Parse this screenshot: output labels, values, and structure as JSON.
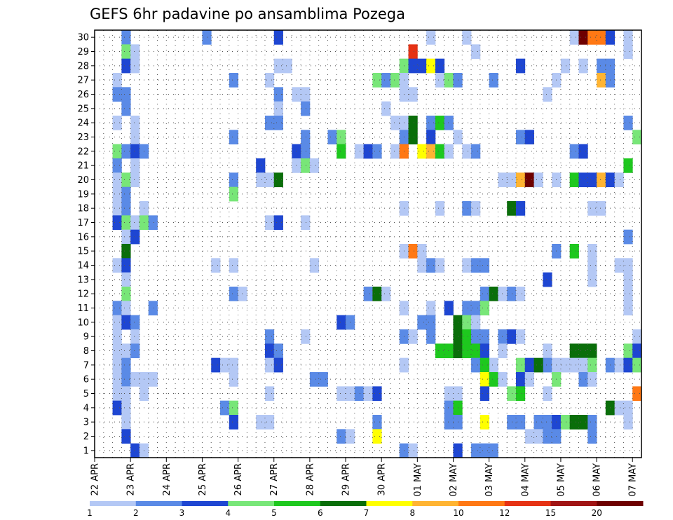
{
  "chart_data": {
    "type": "heatmap",
    "title": "GEFS 6hr padavine po ansamblima Pozega",
    "xlabel": "",
    "ylabel": "",
    "x_tick_labels": [
      "22 APR",
      "23 APR",
      "24 APR",
      "25 APR",
      "26 APR",
      "27 APR",
      "28 APR",
      "29 APR",
      "30 APR",
      "01 MAY",
      "02 MAY",
      "03 MAY",
      "04 MAY",
      "05 MAY",
      "06 MAY",
      "07 MAY"
    ],
    "y_tick_labels": [
      "1",
      "2",
      "3",
      "4",
      "5",
      "6",
      "7",
      "8",
      "9",
      "10",
      "11",
      "12",
      "13",
      "14",
      "15",
      "16",
      "17",
      "18",
      "19",
      "20",
      "21",
      "22",
      "23",
      "24",
      "25",
      "26",
      "27",
      "28",
      "29",
      "30"
    ],
    "time_steps": 61,
    "members": 30,
    "grid": "dotted",
    "colorbar": {
      "position": "bottom",
      "labels": [
        "1",
        "2",
        "3",
        "4",
        "5",
        "6",
        "7",
        "8",
        "10",
        "12",
        "15",
        "20"
      ],
      "colors": [
        "#b4c8f5",
        "#5a8ae6",
        "#1e46d2",
        "#78e678",
        "#1ec81e",
        "#0a6e0a",
        "#ffff00",
        "#ffb432",
        "#ff7814",
        "#e63214",
        "#a01414",
        "#6e0000"
      ]
    },
    "cells": [
      [
        3,
        30,
        1
      ],
      [
        12,
        30,
        1
      ],
      [
        20,
        30,
        2
      ],
      [
        37,
        30,
        0
      ],
      [
        41,
        30,
        0
      ],
      [
        53,
        30,
        0
      ],
      [
        54,
        30,
        11
      ],
      [
        55,
        30,
        8
      ],
      [
        56,
        30,
        8
      ],
      [
        57,
        30,
        2
      ],
      [
        59,
        30,
        0
      ],
      [
        3,
        29,
        3
      ],
      [
        4,
        29,
        0
      ],
      [
        35,
        29,
        9
      ],
      [
        42,
        29,
        0
      ],
      [
        59,
        29,
        0
      ],
      [
        3,
        28,
        2
      ],
      [
        4,
        28,
        0
      ],
      [
        20,
        28,
        0
      ],
      [
        21,
        28,
        0
      ],
      [
        34,
        28,
        3
      ],
      [
        35,
        28,
        2
      ],
      [
        36,
        28,
        2
      ],
      [
        37,
        28,
        6
      ],
      [
        38,
        28,
        2
      ],
      [
        47,
        28,
        2
      ],
      [
        52,
        28,
        0
      ],
      [
        54,
        28,
        0
      ],
      [
        56,
        28,
        1
      ],
      [
        57,
        28,
        1
      ],
      [
        2,
        27,
        0
      ],
      [
        15,
        27,
        1
      ],
      [
        19,
        27,
        0
      ],
      [
        31,
        27,
        3
      ],
      [
        32,
        27,
        1
      ],
      [
        33,
        27,
        3
      ],
      [
        34,
        27,
        0
      ],
      [
        38,
        27,
        0
      ],
      [
        39,
        27,
        3
      ],
      [
        40,
        27,
        1
      ],
      [
        44,
        27,
        1
      ],
      [
        51,
        27,
        0
      ],
      [
        56,
        27,
        7
      ],
      [
        57,
        27,
        1
      ],
      [
        2,
        26,
        1
      ],
      [
        3,
        26,
        1
      ],
      [
        20,
        26,
        1
      ],
      [
        22,
        26,
        0
      ],
      [
        23,
        26,
        0
      ],
      [
        34,
        26,
        0
      ],
      [
        35,
        26,
        0
      ],
      [
        50,
        26,
        0
      ],
      [
        3,
        25,
        1
      ],
      [
        20,
        25,
        0
      ],
      [
        23,
        25,
        1
      ],
      [
        32,
        25,
        0
      ],
      [
        2,
        24,
        0
      ],
      [
        4,
        24,
        0
      ],
      [
        19,
        24,
        1
      ],
      [
        20,
        24,
        1
      ],
      [
        33,
        24,
        0
      ],
      [
        34,
        24,
        0
      ],
      [
        35,
        24,
        5
      ],
      [
        37,
        24,
        1
      ],
      [
        38,
        24,
        4
      ],
      [
        39,
        24,
        1
      ],
      [
        59,
        24,
        1
      ],
      [
        4,
        23,
        0
      ],
      [
        15,
        23,
        1
      ],
      [
        23,
        23,
        1
      ],
      [
        26,
        23,
        1
      ],
      [
        27,
        23,
        3
      ],
      [
        34,
        23,
        1
      ],
      [
        35,
        23,
        5
      ],
      [
        37,
        23,
        2
      ],
      [
        40,
        23,
        0
      ],
      [
        47,
        23,
        1
      ],
      [
        48,
        23,
        2
      ],
      [
        60,
        23,
        3
      ],
      [
        2,
        22,
        3
      ],
      [
        3,
        22,
        1
      ],
      [
        4,
        22,
        2
      ],
      [
        5,
        22,
        1
      ],
      [
        22,
        22,
        2
      ],
      [
        23,
        22,
        1
      ],
      [
        27,
        22,
        4
      ],
      [
        29,
        22,
        0
      ],
      [
        30,
        22,
        2
      ],
      [
        31,
        22,
        1
      ],
      [
        33,
        22,
        0
      ],
      [
        34,
        22,
        8
      ],
      [
        36,
        22,
        6
      ],
      [
        37,
        22,
        7
      ],
      [
        38,
        22,
        4
      ],
      [
        39,
        22,
        0
      ],
      [
        41,
        22,
        0
      ],
      [
        42,
        22,
        1
      ],
      [
        53,
        22,
        1
      ],
      [
        54,
        22,
        2
      ],
      [
        2,
        21,
        1
      ],
      [
        4,
        21,
        0
      ],
      [
        18,
        21,
        2
      ],
      [
        22,
        21,
        0
      ],
      [
        23,
        21,
        3
      ],
      [
        24,
        21,
        0
      ],
      [
        59,
        21,
        4
      ],
      [
        2,
        20,
        0
      ],
      [
        3,
        20,
        3
      ],
      [
        4,
        20,
        0
      ],
      [
        15,
        20,
        1
      ],
      [
        18,
        20,
        0
      ],
      [
        19,
        20,
        0
      ],
      [
        20,
        20,
        5
      ],
      [
        45,
        20,
        0
      ],
      [
        46,
        20,
        0
      ],
      [
        47,
        20,
        7
      ],
      [
        48,
        20,
        11
      ],
      [
        49,
        20,
        0
      ],
      [
        51,
        20,
        0
      ],
      [
        53,
        20,
        4
      ],
      [
        54,
        20,
        2
      ],
      [
        55,
        20,
        2
      ],
      [
        56,
        20,
        7
      ],
      [
        57,
        20,
        2
      ],
      [
        58,
        20,
        0
      ],
      [
        2,
        19,
        0
      ],
      [
        3,
        19,
        1
      ],
      [
        15,
        19,
        3
      ],
      [
        2,
        18,
        0
      ],
      [
        3,
        18,
        1
      ],
      [
        5,
        18,
        0
      ],
      [
        34,
        18,
        0
      ],
      [
        38,
        18,
        0
      ],
      [
        41,
        18,
        1
      ],
      [
        42,
        18,
        0
      ],
      [
        46,
        18,
        5
      ],
      [
        47,
        18,
        2
      ],
      [
        55,
        18,
        0
      ],
      [
        56,
        18,
        0
      ],
      [
        2,
        17,
        2
      ],
      [
        3,
        17,
        3
      ],
      [
        4,
        17,
        0
      ],
      [
        5,
        17,
        3
      ],
      [
        6,
        17,
        1
      ],
      [
        19,
        17,
        0
      ],
      [
        20,
        17,
        2
      ],
      [
        23,
        17,
        0
      ],
      [
        3,
        16,
        0
      ],
      [
        4,
        16,
        2
      ],
      [
        59,
        16,
        1
      ],
      [
        3,
        15,
        5
      ],
      [
        34,
        15,
        0
      ],
      [
        35,
        15,
        8
      ],
      [
        36,
        15,
        0
      ],
      [
        51,
        15,
        1
      ],
      [
        53,
        15,
        4
      ],
      [
        55,
        15,
        0
      ],
      [
        2,
        14,
        0
      ],
      [
        3,
        14,
        2
      ],
      [
        13,
        14,
        0
      ],
      [
        15,
        14,
        0
      ],
      [
        24,
        14,
        0
      ],
      [
        36,
        14,
        0
      ],
      [
        37,
        14,
        1
      ],
      [
        38,
        14,
        0
      ],
      [
        41,
        14,
        0
      ],
      [
        42,
        14,
        1
      ],
      [
        43,
        14,
        1
      ],
      [
        55,
        14,
        0
      ],
      [
        58,
        14,
        0
      ],
      [
        59,
        14,
        0
      ],
      [
        3,
        13,
        0
      ],
      [
        50,
        13,
        2
      ],
      [
        55,
        13,
        0
      ],
      [
        59,
        13,
        0
      ],
      [
        3,
        12,
        3
      ],
      [
        15,
        12,
        1
      ],
      [
        16,
        12,
        0
      ],
      [
        30,
        12,
        1
      ],
      [
        31,
        12,
        5
      ],
      [
        32,
        12,
        0
      ],
      [
        43,
        12,
        1
      ],
      [
        44,
        12,
        5
      ],
      [
        45,
        12,
        0
      ],
      [
        46,
        12,
        1
      ],
      [
        47,
        12,
        0
      ],
      [
        59,
        12,
        0
      ],
      [
        2,
        11,
        1
      ],
      [
        3,
        11,
        0
      ],
      [
        6,
        11,
        1
      ],
      [
        34,
        11,
        0
      ],
      [
        37,
        11,
        0
      ],
      [
        39,
        11,
        2
      ],
      [
        41,
        11,
        1
      ],
      [
        42,
        11,
        1
      ],
      [
        43,
        11,
        3
      ],
      [
        59,
        11,
        0
      ],
      [
        2,
        10,
        0
      ],
      [
        3,
        10,
        2
      ],
      [
        4,
        10,
        1
      ],
      [
        27,
        10,
        2
      ],
      [
        28,
        10,
        1
      ],
      [
        36,
        10,
        1
      ],
      [
        37,
        10,
        1
      ],
      [
        40,
        10,
        5
      ],
      [
        41,
        10,
        3
      ],
      [
        42,
        10,
        0
      ],
      [
        2,
        9,
        0
      ],
      [
        4,
        9,
        0
      ],
      [
        19,
        9,
        1
      ],
      [
        23,
        9,
        0
      ],
      [
        34,
        9,
        1
      ],
      [
        35,
        9,
        0
      ],
      [
        37,
        9,
        1
      ],
      [
        40,
        9,
        5
      ],
      [
        41,
        9,
        4
      ],
      [
        42,
        9,
        1
      ],
      [
        43,
        9,
        1
      ],
      [
        45,
        9,
        1
      ],
      [
        46,
        9,
        2
      ],
      [
        47,
        9,
        0
      ],
      [
        60,
        9,
        0
      ],
      [
        2,
        8,
        0
      ],
      [
        3,
        8,
        0
      ],
      [
        4,
        8,
        1
      ],
      [
        19,
        8,
        2
      ],
      [
        20,
        8,
        1
      ],
      [
        38,
        8,
        4
      ],
      [
        39,
        8,
        4
      ],
      [
        40,
        8,
        5
      ],
      [
        41,
        8,
        4
      ],
      [
        42,
        8,
        4
      ],
      [
        43,
        8,
        2
      ],
      [
        45,
        8,
        0
      ],
      [
        50,
        8,
        0
      ],
      [
        53,
        8,
        5
      ],
      [
        54,
        8,
        5
      ],
      [
        55,
        8,
        5
      ],
      [
        59,
        8,
        3
      ],
      [
        60,
        8,
        2
      ],
      [
        2,
        7,
        0
      ],
      [
        13,
        7,
        2
      ],
      [
        14,
        7,
        0
      ],
      [
        15,
        7,
        0
      ],
      [
        19,
        7,
        0
      ],
      [
        20,
        7,
        2
      ],
      [
        34,
        7,
        0
      ],
      [
        42,
        7,
        1
      ],
      [
        44,
        7,
        0
      ],
      [
        47,
        7,
        3
      ],
      [
        48,
        7,
        2
      ],
      [
        50,
        7,
        1
      ],
      [
        51,
        7,
        0
      ],
      [
        52,
        7,
        0
      ],
      [
        53,
        7,
        0
      ],
      [
        54,
        7,
        0
      ],
      [
        55,
        7,
        3
      ],
      [
        57,
        7,
        1
      ],
      [
        58,
        7,
        0
      ],
      [
        3,
        7,
        1
      ],
      [
        43,
        7,
        4
      ],
      [
        49,
        7,
        5
      ],
      [
        59,
        7,
        2
      ],
      [
        60,
        7,
        3
      ],
      [
        2,
        6,
        0
      ],
      [
        3,
        6,
        1
      ],
      [
        4,
        6,
        0
      ],
      [
        5,
        6,
        0
      ],
      [
        6,
        6,
        0
      ],
      [
        15,
        6,
        0
      ],
      [
        24,
        6,
        1
      ],
      [
        25,
        6,
        1
      ],
      [
        43,
        6,
        6
      ],
      [
        44,
        6,
        4
      ],
      [
        45,
        6,
        0
      ],
      [
        47,
        6,
        2
      ],
      [
        48,
        6,
        0
      ],
      [
        51,
        6,
        3
      ],
      [
        54,
        6,
        1
      ],
      [
        55,
        6,
        0
      ],
      [
        2,
        5,
        0
      ],
      [
        3,
        5,
        0
      ],
      [
        5,
        5,
        0
      ],
      [
        19,
        5,
        0
      ],
      [
        27,
        5,
        0
      ],
      [
        28,
        5,
        0
      ],
      [
        29,
        5,
        1
      ],
      [
        30,
        5,
        0
      ],
      [
        31,
        5,
        2
      ],
      [
        39,
        5,
        0
      ],
      [
        40,
        5,
        0
      ],
      [
        43,
        5,
        2
      ],
      [
        46,
        5,
        3
      ],
      [
        47,
        5,
        4
      ],
      [
        50,
        5,
        0
      ],
      [
        60,
        5,
        8
      ],
      [
        2,
        4,
        2
      ],
      [
        3,
        4,
        0
      ],
      [
        14,
        4,
        1
      ],
      [
        15,
        4,
        3
      ],
      [
        39,
        4,
        1
      ],
      [
        40,
        4,
        4
      ],
      [
        57,
        4,
        5
      ],
      [
        58,
        4,
        0
      ],
      [
        59,
        4,
        0
      ],
      [
        3,
        3,
        0
      ],
      [
        15,
        3,
        2
      ],
      [
        18,
        3,
        0
      ],
      [
        19,
        3,
        0
      ],
      [
        31,
        3,
        1
      ],
      [
        39,
        3,
        1
      ],
      [
        40,
        3,
        1
      ],
      [
        43,
        3,
        6
      ],
      [
        46,
        3,
        1
      ],
      [
        47,
        3,
        1
      ],
      [
        49,
        3,
        1
      ],
      [
        50,
        3,
        1
      ],
      [
        51,
        3,
        2
      ],
      [
        52,
        3,
        3
      ],
      [
        53,
        3,
        5
      ],
      [
        54,
        3,
        5
      ],
      [
        55,
        3,
        1
      ],
      [
        59,
        3,
        0
      ],
      [
        3,
        2,
        2
      ],
      [
        27,
        2,
        1
      ],
      [
        28,
        2,
        0
      ],
      [
        31,
        2,
        6
      ],
      [
        48,
        2,
        0
      ],
      [
        49,
        2,
        0
      ],
      [
        50,
        2,
        1
      ],
      [
        51,
        2,
        1
      ],
      [
        55,
        2,
        1
      ],
      [
        4,
        1,
        2
      ],
      [
        5,
        1,
        0
      ],
      [
        34,
        1,
        1
      ],
      [
        35,
        1,
        0
      ],
      [
        40,
        1,
        2
      ],
      [
        42,
        1,
        1
      ],
      [
        43,
        1,
        1
      ],
      [
        44,
        1,
        1
      ]
    ]
  }
}
